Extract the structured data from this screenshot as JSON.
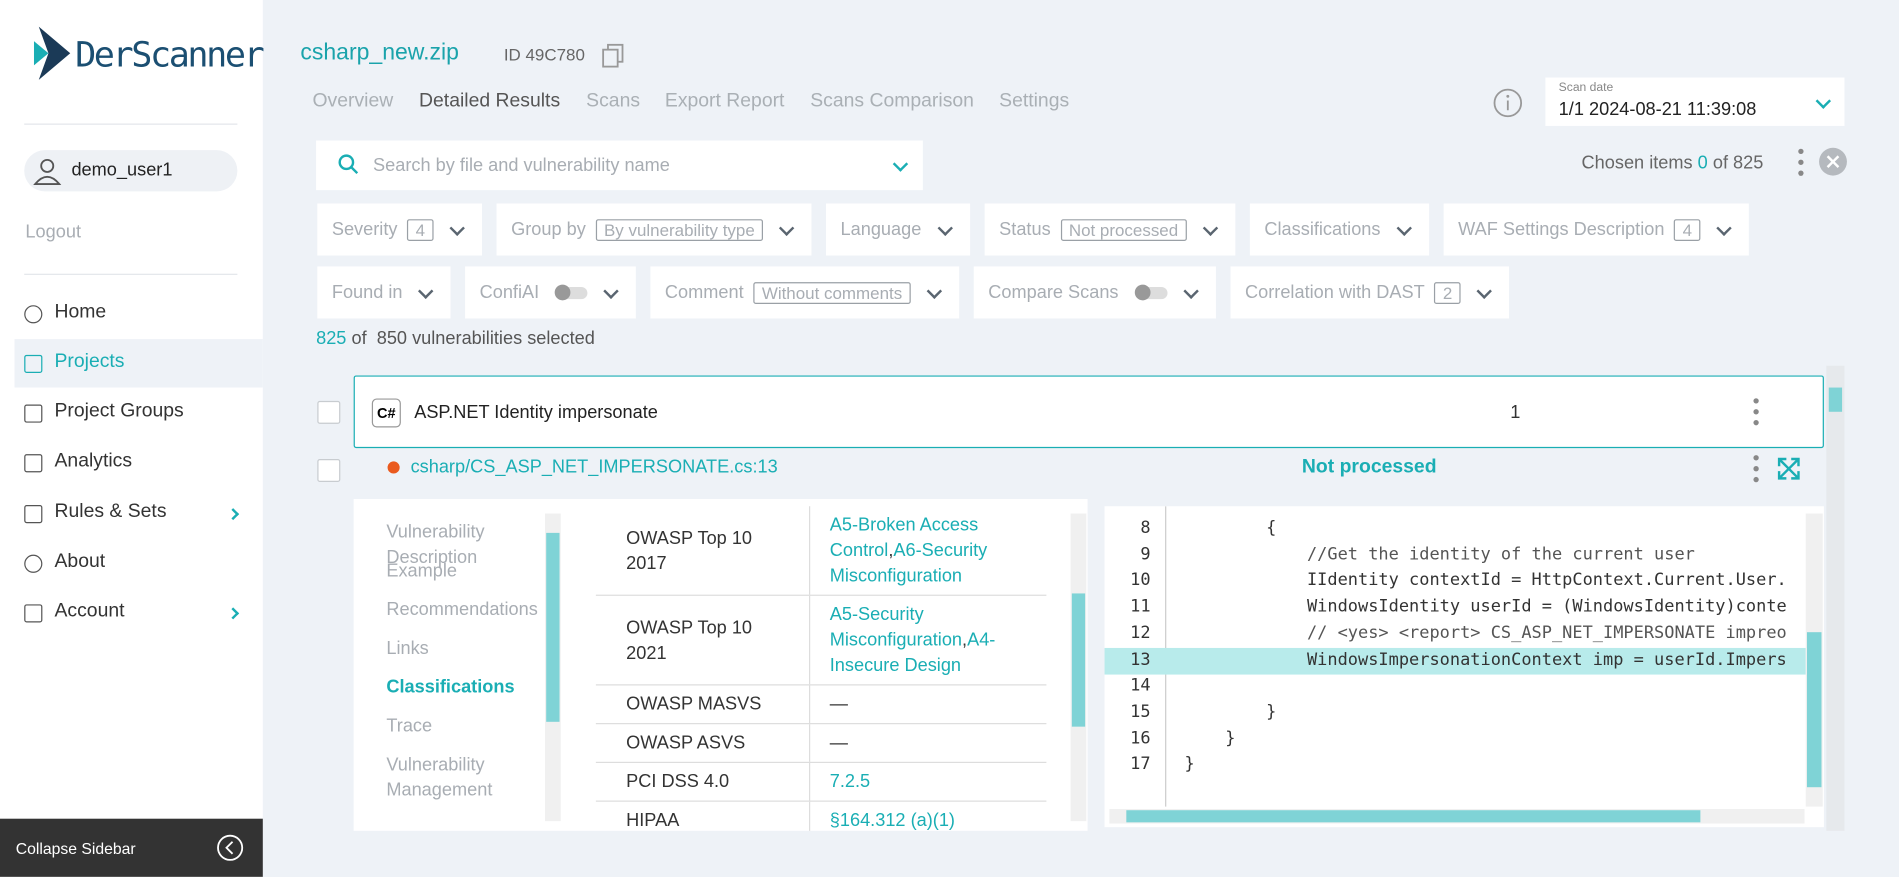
{
  "sidebar": {
    "logo": "DerScanner",
    "user": "demo_user1",
    "logout": "Logout",
    "nav": [
      {
        "label": "Home"
      },
      {
        "label": "Projects",
        "active": true
      },
      {
        "label": "Project Groups"
      },
      {
        "label": "Analytics"
      },
      {
        "label": "Rules & Sets",
        "arrow": true
      },
      {
        "label": "About"
      },
      {
        "label": "Account",
        "arrow": true
      }
    ],
    "collapse": "Collapse Sidebar"
  },
  "header": {
    "project": "csharp_new.zip",
    "id": "ID 49C780",
    "tabs": [
      {
        "label": "Overview"
      },
      {
        "label": "Detailed Results",
        "active": true
      },
      {
        "label": "Scans"
      },
      {
        "label": "Export Report"
      },
      {
        "label": "Scans Comparison"
      },
      {
        "label": "Settings"
      }
    ],
    "scan_date_label": "Scan date",
    "scan_date": "1/1 2024-08-21 11:39:08"
  },
  "search": {
    "placeholder": "Search by file and vulnerability name",
    "chosen_label": "Chosen items",
    "chosen": 0,
    "chosen_of": "of 825"
  },
  "filters": [
    [
      {
        "label": "Severity",
        "value": 4
      },
      {
        "label": "Group by",
        "value": "By vulnerability type"
      },
      {
        "label": "Language"
      },
      {
        "label": "Status",
        "value": "Not processed"
      },
      {
        "label": "Classifications"
      },
      {
        "label": "WAF Settings Description",
        "value": 4
      }
    ],
    [
      {
        "label": "Found in"
      },
      {
        "label": "ConfiAI",
        "switch": false
      },
      {
        "label": "Comment",
        "value": "Without comments"
      },
      {
        "label": "Compare Scans",
        "switch": false
      },
      {
        "label": "Correlation with DAST",
        "value": 2
      }
    ]
  ],
  "selection": {
    "selected": 825,
    "of": "of",
    "total": "850 vulnerabilities selected"
  },
  "group": {
    "name": "ASP.NET Identity impersonate",
    "count": 1
  },
  "item": {
    "file": "csharp/CS_ASP_NET_IMPERSONATE.cs:13",
    "status": "Not processed"
  },
  "detail": {
    "menu": [
      {
        "label": "Vulnerability Description"
      },
      {
        "label": "Example"
      },
      {
        "label": "Recommendations"
      },
      {
        "label": "Links"
      },
      {
        "label": "Classifications",
        "active": true
      },
      {
        "label": "Trace"
      },
      {
        "label": "Vulnerability Management"
      }
    ],
    "classifications": [
      {
        "name": "OWASP Top 10 2017",
        "value": [
          "A5-Broken Access Control",
          ",",
          "A6-Security Misconfiguration"
        ]
      },
      {
        "name": "OWASP Top 10 2021",
        "value": [
          "A5-Security Misconfiguration",
          ",",
          "A4-Insecure Design"
        ]
      },
      {
        "name": "OWASP MASVS",
        "value": [
          "—"
        ]
      },
      {
        "name": "OWASP ASVS",
        "value": [
          "—"
        ]
      },
      {
        "name": "PCI DSS 4.0",
        "value": [
          "7.2.5"
        ]
      },
      {
        "name": "HIPAA",
        "value": [
          "§164.312 (a)(1)"
        ]
      }
    ],
    "code": [
      {
        "number": 8,
        "text": "        {"
      },
      {
        "number": 9,
        "text": "            //Get the identity of the current user"
      },
      {
        "number": 10,
        "text": "            IIdentity contextId = HttpContext.Current.User."
      },
      {
        "number": 11,
        "text": "            WindowsIdentity userId = (WindowsIdentity)conte"
      },
      {
        "number": 12,
        "text": "            // <yes> <report> CS_ASP_NET_IMPERSONATE impreo"
      },
      {
        "number": 13,
        "text": "            WindowsImpersonationContext imp = userId.Impers",
        "highlight": true
      },
      {
        "number": 14
      },
      {
        "number": 15,
        "text": "        }"
      },
      {
        "number": 16,
        "text": "    }"
      },
      {
        "number": 17,
        "text": "}"
      }
    ]
  }
}
